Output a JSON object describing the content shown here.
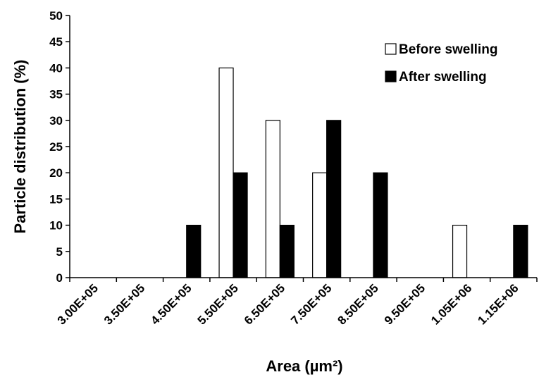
{
  "chart_data": {
    "type": "bar",
    "categories": [
      "3.00E+05",
      "3.50E+05",
      "4.50E+05",
      "5.50E+05",
      "6.50E+05",
      "7.50E+05",
      "8.50E+05",
      "9.50E+05",
      "1.05E+06",
      "1.15E+06"
    ],
    "series": [
      {
        "name": "Before swelling",
        "values": [
          0,
          0,
          0,
          40,
          30,
          20,
          0,
          0,
          10,
          0
        ],
        "color": "#ffffff"
      },
      {
        "name": "After swelling",
        "values": [
          0,
          0,
          10,
          20,
          10,
          30,
          20,
          0,
          0,
          10
        ],
        "color": "#000000"
      }
    ],
    "xlabel": "Area (µm²)",
    "ylabel": "Particle distribution (%)",
    "ylim": [
      0,
      50
    ],
    "yticks": [
      "0",
      "5",
      "10",
      "15",
      "20",
      "25",
      "30",
      "35",
      "40",
      "45",
      "50"
    ],
    "grid": false,
    "legend_position": "top-right"
  }
}
